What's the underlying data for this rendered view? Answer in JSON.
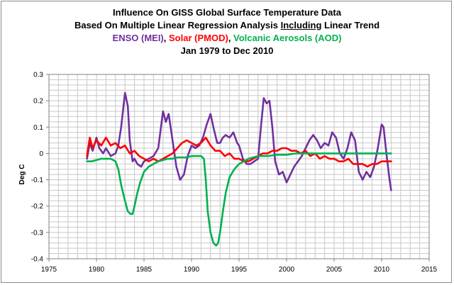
{
  "titles": {
    "line1": "Influence On GISS Global Surface Temperature Data",
    "line2_pre": "Based On Multiple Linear Regression Analysis ",
    "line2_u": "Including",
    "line2_post": " Linear Trend",
    "line3_a": "ENSO (MEI)",
    "line3_sep1": ", ",
    "line3_b": "Solar (PMOD)",
    "line3_sep2": ", ",
    "line3_c": "Volcanic Aerosols (AOD)",
    "line4": "Jan 1979 to Dec 2010"
  },
  "chart_data": {
    "type": "line",
    "ylabel": "Deg C",
    "xlim": [
      1975,
      2015
    ],
    "ylim": [
      -0.4,
      0.3
    ],
    "x_ticks": [
      1975,
      1980,
      1985,
      1990,
      1995,
      2000,
      2005,
      2010,
      2015
    ],
    "y_ticks": [
      -0.4,
      -0.3,
      -0.2,
      -0.1,
      0,
      0.1,
      0.2,
      0.3
    ],
    "grid": true,
    "series": [
      {
        "name": "ENSO (MEI)",
        "color": "#7030a0",
        "x": [
          1979.0,
          1979.3,
          1979.6,
          1980.0,
          1980.3,
          1980.7,
          1981.0,
          1981.5,
          1982.0,
          1982.3,
          1982.6,
          1983.0,
          1983.3,
          1983.5,
          1983.8,
          1984.0,
          1984.3,
          1984.7,
          1985.0,
          1985.5,
          1986.0,
          1986.5,
          1987.0,
          1987.3,
          1987.6,
          1988.0,
          1988.4,
          1988.8,
          1989.2,
          1989.6,
          1990.0,
          1990.4,
          1990.8,
          1991.2,
          1991.6,
          1992.0,
          1992.3,
          1992.7,
          1993.0,
          1993.3,
          1993.6,
          1994.0,
          1994.4,
          1994.8,
          1995.0,
          1995.4,
          1995.8,
          1996.2,
          1996.6,
          1997.0,
          1997.3,
          1997.6,
          1997.9,
          1998.2,
          1998.5,
          1998.8,
          1999.2,
          1999.6,
          2000.0,
          2000.4,
          2000.8,
          2001.2,
          2001.6,
          2002.0,
          2002.4,
          2002.8,
          2003.2,
          2003.6,
          2004.0,
          2004.4,
          2004.8,
          2005.2,
          2005.6,
          2006.0,
          2006.4,
          2006.8,
          2007.2,
          2007.6,
          2008.0,
          2008.4,
          2008.8,
          2009.2,
          2009.6,
          2010.0,
          2010.2,
          2010.5,
          2010.8,
          2011.0
        ],
        "y": [
          -0.02,
          0.04,
          0.01,
          0.06,
          0.02,
          0.0,
          0.02,
          -0.01,
          0.0,
          0.03,
          0.1,
          0.23,
          0.18,
          0.05,
          -0.03,
          -0.02,
          -0.04,
          -0.05,
          -0.03,
          -0.02,
          -0.01,
          0.02,
          0.16,
          0.12,
          0.15,
          0.05,
          -0.05,
          -0.1,
          -0.08,
          -0.01,
          0.03,
          0.02,
          0.03,
          0.06,
          0.11,
          0.15,
          0.1,
          0.04,
          0.04,
          0.06,
          0.07,
          0.06,
          0.08,
          0.04,
          0.03,
          -0.02,
          -0.04,
          -0.04,
          -0.03,
          -0.02,
          0.1,
          0.21,
          0.19,
          0.2,
          0.1,
          -0.03,
          -0.08,
          -0.07,
          -0.11,
          -0.08,
          -0.05,
          -0.03,
          -0.01,
          0.02,
          0.05,
          0.07,
          0.05,
          0.02,
          0.04,
          0.03,
          0.08,
          0.06,
          0.0,
          -0.02,
          0.02,
          0.08,
          0.05,
          -0.07,
          -0.1,
          -0.07,
          -0.09,
          -0.05,
          0.02,
          0.11,
          0.1,
          0.0,
          -0.09,
          -0.14
        ]
      },
      {
        "name": "Solar (PMOD)",
        "color": "#ff0000",
        "x": [
          1979.0,
          1979.3,
          1979.6,
          1980.0,
          1980.5,
          1981.0,
          1981.5,
          1982.0,
          1982.5,
          1983.0,
          1983.5,
          1984.0,
          1984.5,
          1985.0,
          1985.5,
          1986.0,
          1986.5,
          1987.0,
          1987.5,
          1988.0,
          1988.5,
          1989.0,
          1989.5,
          1990.0,
          1990.5,
          1991.0,
          1991.5,
          1992.0,
          1992.5,
          1993.0,
          1993.5,
          1994.0,
          1994.5,
          1995.0,
          1995.5,
          1996.0,
          1996.5,
          1997.0,
          1997.5,
          1998.0,
          1998.5,
          1999.0,
          1999.5,
          2000.0,
          2000.5,
          2001.0,
          2001.5,
          2002.0,
          2002.5,
          2003.0,
          2003.5,
          2004.0,
          2004.5,
          2005.0,
          2005.5,
          2006.0,
          2006.5,
          2007.0,
          2007.5,
          2008.0,
          2008.5,
          2009.0,
          2009.5,
          2010.0,
          2010.5,
          2011.0
        ],
        "y": [
          -0.01,
          0.06,
          0.02,
          0.05,
          0.03,
          0.06,
          0.03,
          0.04,
          0.02,
          0.03,
          0.0,
          0.01,
          -0.01,
          -0.02,
          -0.03,
          -0.02,
          -0.03,
          -0.02,
          -0.01,
          0.0,
          0.02,
          0.04,
          0.05,
          0.04,
          0.03,
          0.04,
          0.06,
          0.03,
          0.01,
          0.01,
          -0.01,
          0.0,
          -0.02,
          -0.02,
          -0.03,
          -0.03,
          -0.02,
          -0.01,
          0.0,
          0.0,
          0.01,
          0.01,
          0.02,
          0.02,
          0.01,
          0.01,
          0.0,
          0.01,
          -0.01,
          0.0,
          -0.02,
          -0.01,
          -0.02,
          -0.02,
          -0.03,
          -0.03,
          -0.02,
          -0.04,
          -0.04,
          -0.04,
          -0.05,
          -0.04,
          -0.04,
          -0.03,
          -0.03,
          -0.03
        ]
      },
      {
        "name": "Volcanic Aerosols (AOD)",
        "color": "#00b050",
        "x": [
          1979.0,
          1979.5,
          1980.0,
          1980.5,
          1981.0,
          1981.5,
          1982.0,
          1982.3,
          1982.6,
          1983.0,
          1983.3,
          1983.6,
          1983.8,
          1984.0,
          1984.3,
          1984.6,
          1985.0,
          1985.5,
          1986.0,
          1986.5,
          1987.0,
          1987.5,
          1988.0,
          1988.5,
          1989.0,
          1989.5,
          1990.0,
          1990.5,
          1991.0,
          1991.3,
          1991.5,
          1991.7,
          1992.0,
          1992.3,
          1992.6,
          1992.8,
          1993.0,
          1993.3,
          1993.6,
          1994.0,
          1994.5,
          1995.0,
          1995.5,
          1996.0,
          1996.5,
          1997.0,
          1998.0,
          1999.0,
          2000.0,
          2001.0,
          2002.0,
          2003.0,
          2004.0,
          2005.0,
          2006.0,
          2007.0,
          2008.0,
          2009.0,
          2010.0,
          2011.0
        ],
        "y": [
          -0.03,
          -0.03,
          -0.025,
          -0.02,
          -0.02,
          -0.02,
          -0.03,
          -0.06,
          -0.12,
          -0.18,
          -0.22,
          -0.23,
          -0.23,
          -0.2,
          -0.15,
          -0.11,
          -0.07,
          -0.05,
          -0.04,
          -0.03,
          -0.025,
          -0.02,
          -0.02,
          -0.015,
          -0.015,
          -0.015,
          -0.01,
          -0.01,
          -0.01,
          -0.02,
          -0.1,
          -0.22,
          -0.3,
          -0.34,
          -0.35,
          -0.34,
          -0.3,
          -0.22,
          -0.15,
          -0.09,
          -0.06,
          -0.04,
          -0.03,
          -0.02,
          -0.015,
          -0.01,
          -0.01,
          -0.005,
          -0.005,
          0.0,
          0.0,
          0.0,
          0.0,
          0.0,
          0.0,
          0.0,
          0.0,
          0.0,
          0.0,
          0.0
        ]
      }
    ]
  }
}
